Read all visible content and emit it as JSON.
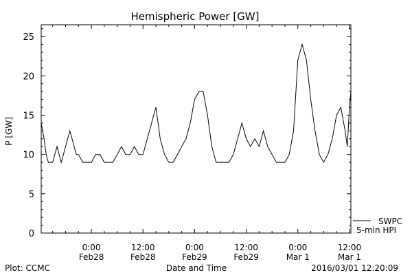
{
  "chart_data": {
    "type": "line",
    "title": "Hemispheric Power [GW]",
    "xlabel": "Date and Time",
    "ylabel": "P [GW]",
    "ylim": [
      0,
      26.5
    ],
    "xlim": [
      "2016-02-27 12:20",
      "2016-03-01 12:20"
    ],
    "yticks": [
      0,
      5,
      10,
      15,
      20,
      25
    ],
    "xticks": [
      {
        "t": "2016-02-28 00:00",
        "line1": "0:00",
        "line2": "Feb28"
      },
      {
        "t": "2016-02-28 12:00",
        "line1": "12:00",
        "line2": "Feb28"
      },
      {
        "t": "2016-02-29 00:00",
        "line1": "0:00",
        "line2": "Feb29"
      },
      {
        "t": "2016-02-29 12:00",
        "line1": "12:00",
        "line2": "Feb29"
      },
      {
        "t": "2016-03-01 00:00",
        "line1": "0:00",
        "line2": "Mar 1"
      },
      {
        "t": "2016-03-01 12:00",
        "line1": "12:00",
        "line2": "Mar 1"
      }
    ],
    "grid": false,
    "legend": [
      {
        "name": "SWPC",
        "line2": "5-min HPI"
      }
    ],
    "series": [
      {
        "name": "SWPC",
        "x": [
          "2016-02-27 12:20",
          "2016-02-27 12:40",
          "2016-02-27 13:00",
          "2016-02-27 13:30",
          "2016-02-27 14:00",
          "2016-02-27 14:30",
          "2016-02-27 15:00",
          "2016-02-27 15:30",
          "2016-02-27 16:00",
          "2016-02-27 16:30",
          "2016-02-27 17:00",
          "2016-02-27 17:30",
          "2016-02-27 18:00",
          "2016-02-27 18:30",
          "2016-02-27 19:00",
          "2016-02-27 19:30",
          "2016-02-27 20:00",
          "2016-02-27 20:30",
          "2016-02-27 21:00",
          "2016-02-27 22:00",
          "2016-02-27 23:00",
          "2016-02-28 00:00",
          "2016-02-28 01:00",
          "2016-02-28 02:00",
          "2016-02-28 03:00",
          "2016-02-28 04:00",
          "2016-02-28 05:00",
          "2016-02-28 06:00",
          "2016-02-28 07:00",
          "2016-02-28 08:00",
          "2016-02-28 09:00",
          "2016-02-28 10:00",
          "2016-02-28 11:00",
          "2016-02-28 12:00",
          "2016-02-28 13:00",
          "2016-02-28 14:00",
          "2016-02-28 15:00",
          "2016-02-28 15:30",
          "2016-02-28 16:00",
          "2016-02-28 17:00",
          "2016-02-28 18:00",
          "2016-02-28 19:00",
          "2016-02-28 20:00",
          "2016-02-28 21:00",
          "2016-02-28 22:00",
          "2016-02-28 23:00",
          "2016-02-29 00:00",
          "2016-02-29 01:00",
          "2016-02-29 02:00",
          "2016-02-29 03:00",
          "2016-02-29 04:00",
          "2016-02-29 05:00",
          "2016-02-29 06:00",
          "2016-02-29 07:00",
          "2016-02-29 08:00",
          "2016-02-29 09:00",
          "2016-02-29 10:00",
          "2016-02-29 11:00",
          "2016-02-29 12:00",
          "2016-02-29 13:00",
          "2016-02-29 14:00",
          "2016-02-29 15:00",
          "2016-02-29 16:00",
          "2016-02-29 17:00",
          "2016-02-29 18:00",
          "2016-02-29 19:00",
          "2016-02-29 20:00",
          "2016-02-29 21:00",
          "2016-02-29 22:00",
          "2016-02-29 23:00",
          "2016-03-01 00:00",
          "2016-03-01 01:00",
          "2016-03-01 02:00",
          "2016-03-01 03:00",
          "2016-03-01 04:00",
          "2016-03-01 05:00",
          "2016-03-01 06:00",
          "2016-03-01 07:00",
          "2016-03-01 08:00",
          "2016-03-01 09:00",
          "2016-03-01 10:00",
          "2016-03-01 11:00",
          "2016-03-01 11:30",
          "2016-03-01 12:00",
          "2016-03-01 12:20"
        ],
        "y": [
          14,
          13,
          12,
          10,
          9,
          9,
          9,
          10,
          11,
          10,
          9,
          10,
          11,
          12,
          13,
          12,
          11,
          10,
          10,
          9,
          9,
          9,
          10,
          10,
          9,
          9,
          9,
          10,
          11,
          10,
          10,
          11,
          10,
          10,
          12,
          14,
          16,
          14,
          12,
          10,
          9,
          9,
          10,
          11,
          12,
          14,
          17,
          18,
          18,
          15,
          11,
          9,
          9,
          9,
          9,
          10,
          12,
          14,
          12,
          11,
          12,
          11,
          13,
          11,
          10,
          9,
          9,
          9,
          10,
          13,
          22,
          24,
          22,
          17,
          13,
          10,
          9,
          10,
          12,
          15,
          16,
          13,
          11,
          16,
          18
        ]
      }
    ]
  },
  "footer": {
    "left": "Plot: CCMC",
    "right": "2016/03/01 12:20:09"
  }
}
